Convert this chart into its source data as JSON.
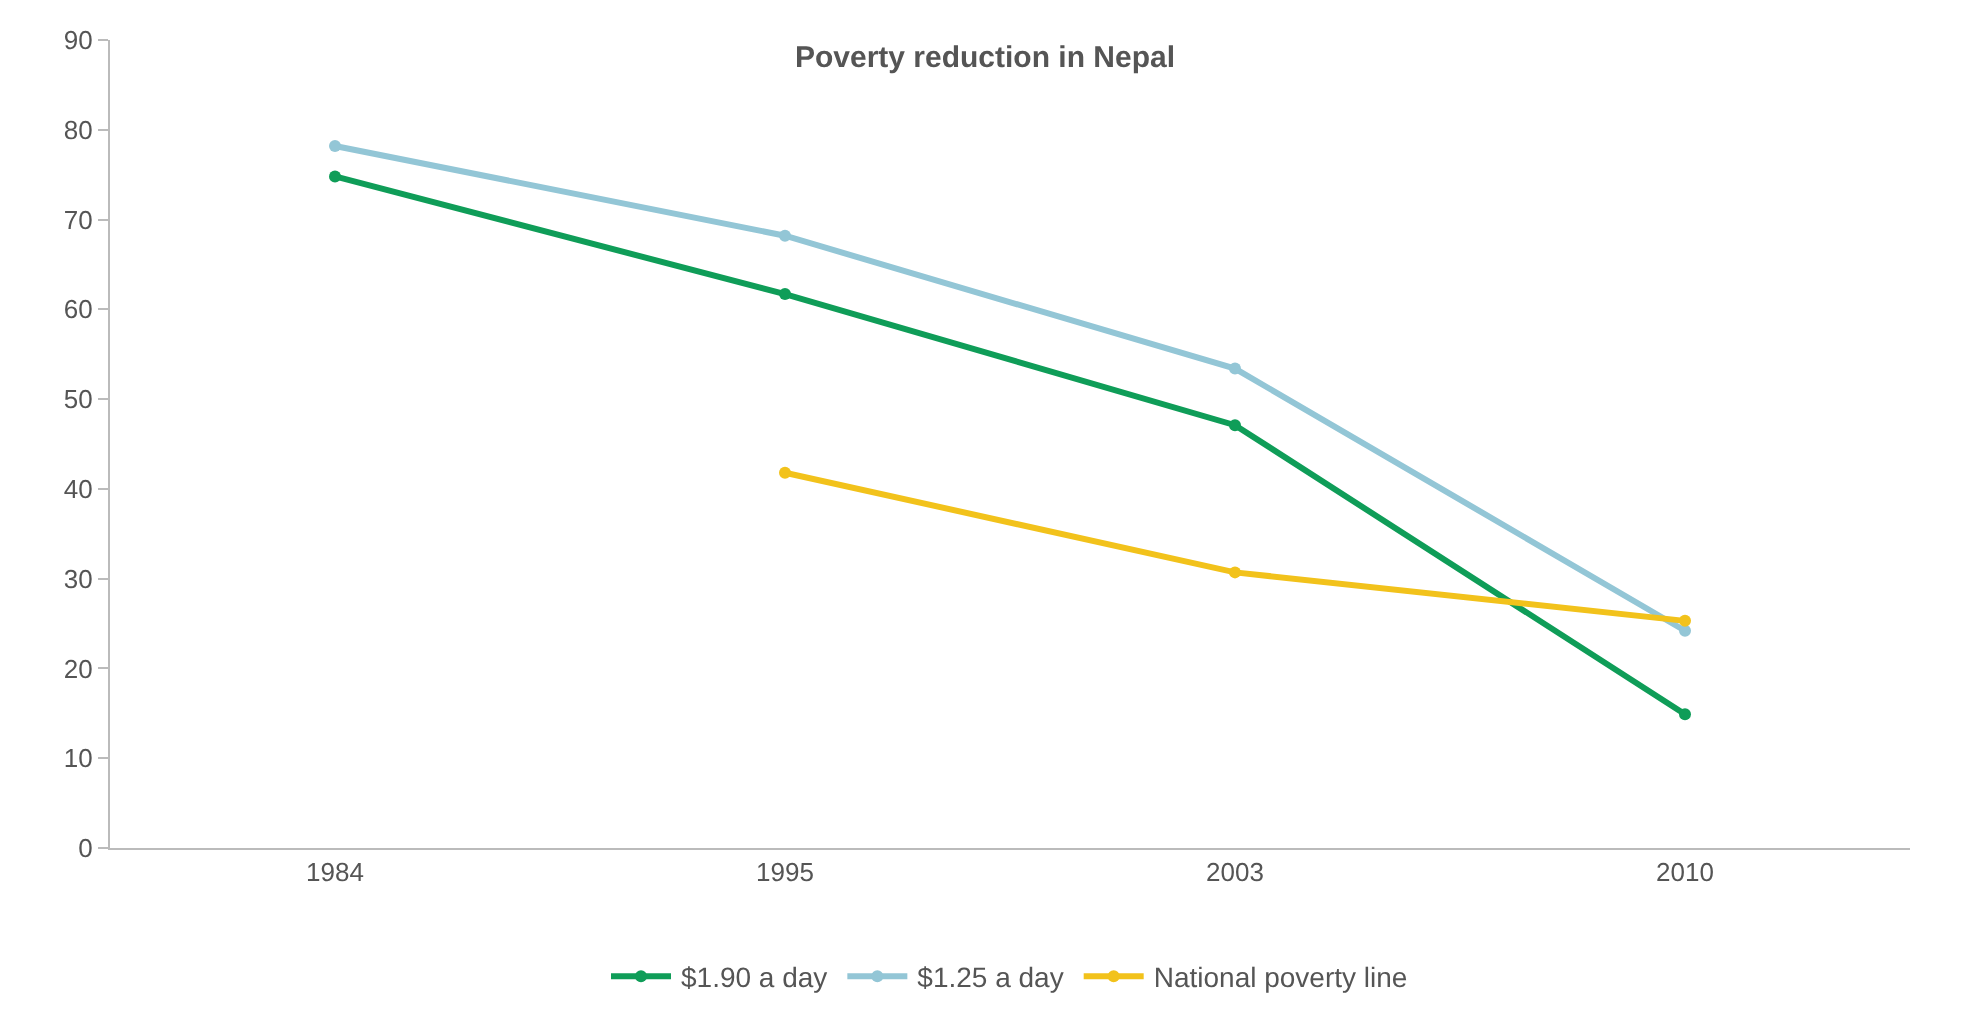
{
  "chart_data": {
    "type": "line",
    "title": "Poverty reduction in Nepal",
    "categories": [
      "1984",
      "1995",
      "2003",
      "2010"
    ],
    "series": [
      {
        "name": "$1.90 a day",
        "color": "#0f9d58",
        "values": [
          74.8,
          61.7,
          47.1,
          14.9
        ]
      },
      {
        "name": "$1.25 a day",
        "color": "#93c6d6",
        "values": [
          78.2,
          68.2,
          53.4,
          24.2
        ]
      },
      {
        "name": "National poverty line",
        "color": "#f2c21b",
        "values": [
          null,
          41.8,
          30.7,
          25.3
        ]
      }
    ],
    "ylim": [
      0,
      90
    ],
    "yticks": [
      0,
      10,
      20,
      30,
      40,
      50,
      60,
      70,
      80,
      90
    ],
    "grid": false,
    "legend": "bottom",
    "marker": "circle",
    "line_style": "solid"
  }
}
